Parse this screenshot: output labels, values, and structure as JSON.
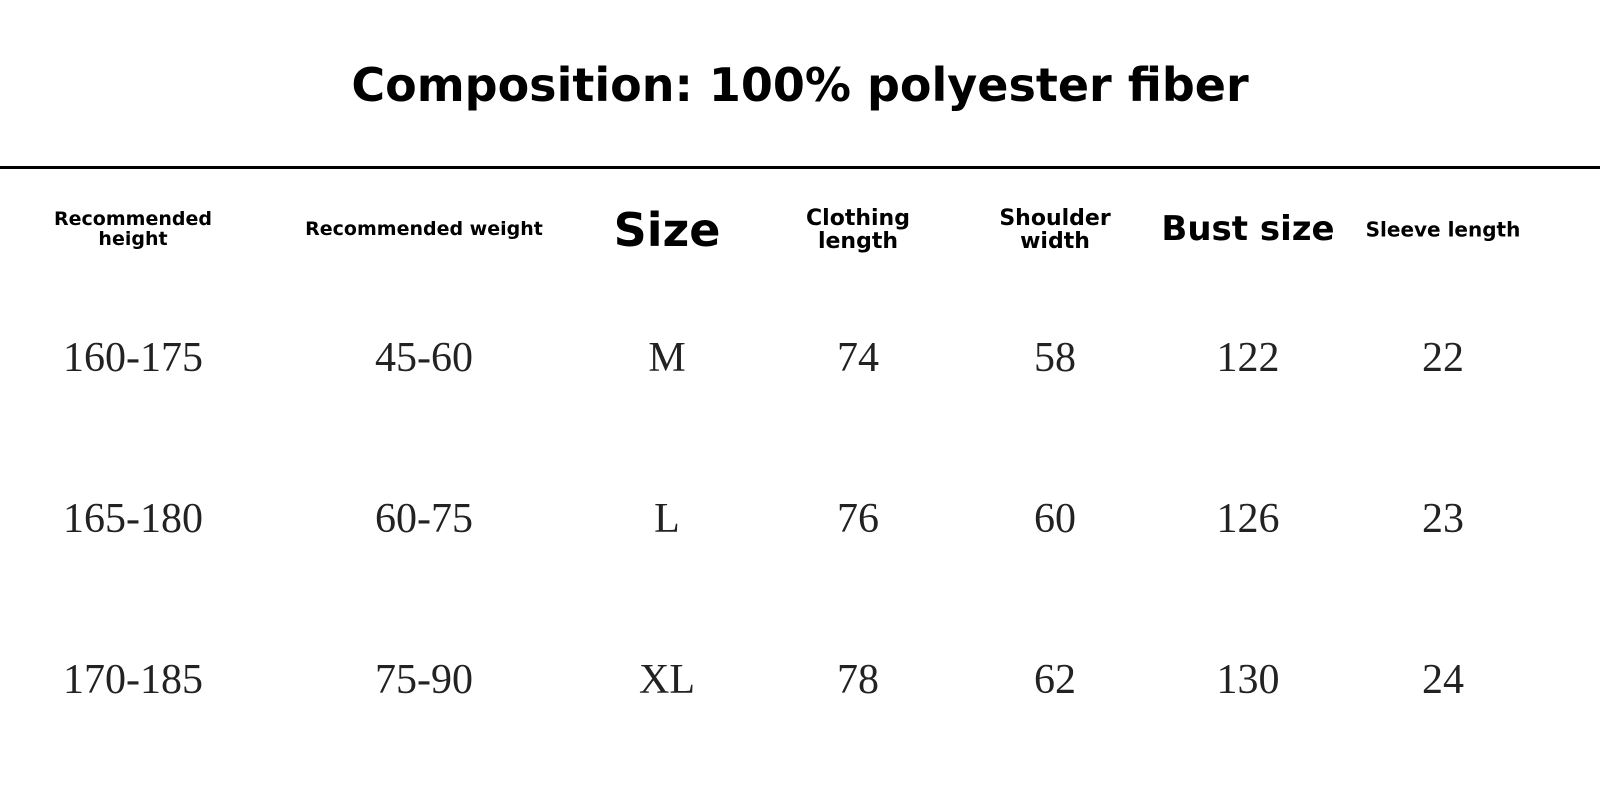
{
  "title": "Composition: 100% polyester fiber",
  "table": {
    "headers": [
      "Recommended height",
      "Recommended weight",
      "Size",
      "Clothing length",
      "Shoulder width",
      "Bust size",
      "Sleeve length"
    ],
    "rows": [
      [
        "160-175",
        "45-60",
        "M",
        "74",
        "58",
        "122",
        "22"
      ],
      [
        "165-180",
        "60-75",
        "L",
        "76",
        "60",
        "126",
        "23"
      ],
      [
        "170-185",
        "75-90",
        "XL",
        "78",
        "62",
        "130",
        "24"
      ]
    ]
  }
}
